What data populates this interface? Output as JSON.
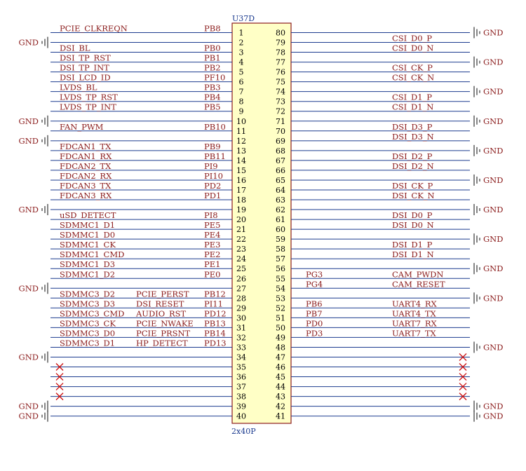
{
  "part": {
    "ref": "U37D",
    "unit": "D",
    "footprint": "2x40P"
  },
  "gnd_label": "GND",
  "left_pins": [
    {
      "num": "1",
      "port": "PB8",
      "name": "PCIE_CLKREQN"
    },
    {
      "num": "2",
      "port": "",
      "name": "",
      "gnd": true
    },
    {
      "num": "3",
      "port": "PB0",
      "name": "DSI_BL"
    },
    {
      "num": "4",
      "port": "PB1",
      "name": "DSI_TP_RST"
    },
    {
      "num": "5",
      "port": "PB2",
      "name": "DSI_TP_INT"
    },
    {
      "num": "6",
      "port": "PF10",
      "name": "DSI_LCD_ID"
    },
    {
      "num": "7",
      "port": "PB3",
      "name": "LVDS_BL"
    },
    {
      "num": "8",
      "port": "PB4",
      "name": "LVDS_TP_RST"
    },
    {
      "num": "9",
      "port": "PB5",
      "name": "LVDS_TP_INT"
    },
    {
      "num": "10",
      "port": "",
      "name": "",
      "gnd": true
    },
    {
      "num": "11",
      "port": "PB10",
      "name": "FAN_PWM"
    },
    {
      "num": "12",
      "port": "",
      "name": "",
      "gnd": true
    },
    {
      "num": "13",
      "port": "PB9",
      "name": "FDCAN1_TX"
    },
    {
      "num": "14",
      "port": "PB11",
      "name": "FDCAN1_RX"
    },
    {
      "num": "15",
      "port": "PI9",
      "name": "FDCAN2_TX"
    },
    {
      "num": "16",
      "port": "PI10",
      "name": "FDCAN2_RX"
    },
    {
      "num": "17",
      "port": "PD2",
      "name": "FDCAN3_TX"
    },
    {
      "num": "18",
      "port": "PD1",
      "name": "FDCAN3_RX"
    },
    {
      "num": "19",
      "port": "",
      "name": "",
      "gnd": true
    },
    {
      "num": "20",
      "port": "PI8",
      "name": "uSD_DETECT"
    },
    {
      "num": "21",
      "port": "PE5",
      "name": "SDMMC1_D1"
    },
    {
      "num": "22",
      "port": "PE4",
      "name": "SDMMC1_D0"
    },
    {
      "num": "23",
      "port": "PE3",
      "name": "SDMMC1_CK"
    },
    {
      "num": "24",
      "port": "PE2",
      "name": "SDMMC1_CMD"
    },
    {
      "num": "25",
      "port": "PE1",
      "name": "SDMMC1_D3"
    },
    {
      "num": "26",
      "port": "PE0",
      "name": "SDMMC1_D2"
    },
    {
      "num": "27",
      "port": "",
      "name": "",
      "gnd": true
    },
    {
      "num": "28",
      "port": "PB12",
      "name": "SDMMC3_D2",
      "alt": "PCIE_PERST"
    },
    {
      "num": "29",
      "port": "PI11",
      "name": "SDMMC3_D3",
      "alt": "DSI_RESET"
    },
    {
      "num": "30",
      "port": "PD12",
      "name": "SDMMC3_CMD",
      "alt": "AUDIO_RST"
    },
    {
      "num": "31",
      "port": "PB13",
      "name": "SDMMC3_CK",
      "alt": "PCIE_NWAKE"
    },
    {
      "num": "32",
      "port": "PB14",
      "name": "SDMMC3_D0",
      "alt": "PCIE_PRSNT"
    },
    {
      "num": "33",
      "port": "PD13",
      "name": "SDMMC3_D1",
      "alt": "HP_DETECT"
    },
    {
      "num": "34",
      "port": "",
      "name": "",
      "gnd": true
    },
    {
      "num": "35",
      "port": "",
      "name": "",
      "nc": true
    },
    {
      "num": "36",
      "port": "",
      "name": "",
      "nc": true
    },
    {
      "num": "37",
      "port": "",
      "name": "",
      "nc": true
    },
    {
      "num": "38",
      "port": "",
      "name": "",
      "nc": true
    },
    {
      "num": "39",
      "port": "",
      "name": "",
      "gnd": true
    },
    {
      "num": "40",
      "port": "",
      "name": "",
      "gnd": true
    }
  ],
  "right_pins": [
    {
      "num": "80",
      "port": "",
      "name": "",
      "gnd": true
    },
    {
      "num": "79",
      "port": "",
      "name": "CSI_D0_P"
    },
    {
      "num": "78",
      "port": "",
      "name": "CSI_D0_N"
    },
    {
      "num": "77",
      "port": "",
      "name": "",
      "gnd": true
    },
    {
      "num": "76",
      "port": "",
      "name": "CSI_CK_P"
    },
    {
      "num": "75",
      "port": "",
      "name": "CSI_CK_N"
    },
    {
      "num": "74",
      "port": "",
      "name": "",
      "gnd": true
    },
    {
      "num": "73",
      "port": "",
      "name": "CSI_D1_P"
    },
    {
      "num": "72",
      "port": "",
      "name": "CSI_D1_N"
    },
    {
      "num": "71",
      "port": "",
      "name": "",
      "gnd": true
    },
    {
      "num": "70",
      "port": "",
      "name": "DSI_D3_P"
    },
    {
      "num": "69",
      "port": "",
      "name": "DSI_D3_N"
    },
    {
      "num": "68",
      "port": "",
      "name": "",
      "gnd": true
    },
    {
      "num": "67",
      "port": "",
      "name": "DSI_D2_P"
    },
    {
      "num": "66",
      "port": "",
      "name": "DSI_D2_N"
    },
    {
      "num": "65",
      "port": "",
      "name": "",
      "gnd": true
    },
    {
      "num": "64",
      "port": "",
      "name": "DSI_CK_P"
    },
    {
      "num": "63",
      "port": "",
      "name": "DSI_CK_N"
    },
    {
      "num": "62",
      "port": "",
      "name": "",
      "gnd": true
    },
    {
      "num": "61",
      "port": "",
      "name": "DSI_D0_P"
    },
    {
      "num": "60",
      "port": "",
      "name": "DSI_D0_N"
    },
    {
      "num": "59",
      "port": "",
      "name": "",
      "gnd": true
    },
    {
      "num": "58",
      "port": "",
      "name": "DSI_D1_P"
    },
    {
      "num": "57",
      "port": "",
      "name": "DSI_D1_N"
    },
    {
      "num": "56",
      "port": "",
      "name": "",
      "gnd": true
    },
    {
      "num": "55",
      "port": "PG3",
      "name": "CAM_PWDN"
    },
    {
      "num": "54",
      "port": "PG4",
      "name": "CAM_RESET"
    },
    {
      "num": "53",
      "port": "",
      "name": "",
      "gnd": true
    },
    {
      "num": "52",
      "port": "PB6",
      "name": "UART4_RX"
    },
    {
      "num": "51",
      "port": "PB7",
      "name": "UART4_TX"
    },
    {
      "num": "50",
      "port": "PD0",
      "name": "UART7_RX"
    },
    {
      "num": "49",
      "port": "PD3",
      "name": "UART7_TX"
    },
    {
      "num": "48",
      "port": "",
      "name": "",
      "gnd": true
    },
    {
      "num": "47",
      "port": "",
      "name": "",
      "nc": true
    },
    {
      "num": "46",
      "port": "",
      "name": "",
      "nc": true
    },
    {
      "num": "45",
      "port": "",
      "name": "",
      "nc": true
    },
    {
      "num": "44",
      "port": "",
      "name": "",
      "nc": true
    },
    {
      "num": "43",
      "port": "",
      "name": "",
      "nc": true
    },
    {
      "num": "42",
      "port": "",
      "name": "",
      "gnd": true
    },
    {
      "num": "41",
      "port": "",
      "name": "",
      "gnd": true
    }
  ],
  "colors": {
    "wire": "#1b3b8f",
    "text": "#8b1c1c",
    "body_fill": "#ffffc6",
    "body_stroke": "#8b1c1c",
    "nc": "#cc1111",
    "gnd": "#333333"
  }
}
